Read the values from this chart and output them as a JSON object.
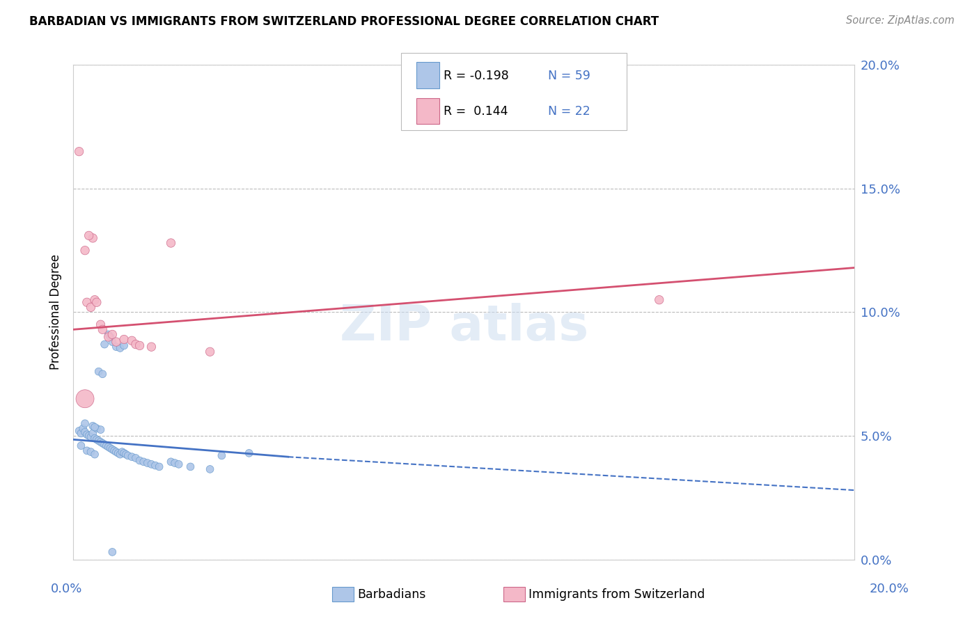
{
  "title": "BARBADIAN VS IMMIGRANTS FROM SWITZERLAND PROFESSIONAL DEGREE CORRELATION CHART",
  "source": "Source: ZipAtlas.com",
  "ylabel": "Professional Degree",
  "right_ytick_vals": [
    0.0,
    5.0,
    10.0,
    15.0,
    20.0
  ],
  "xlim": [
    0.0,
    20.0
  ],
  "ylim": [
    0.0,
    20.0
  ],
  "legend_r_blue": "-0.198",
  "legend_n_blue": "59",
  "legend_r_pink": " 0.144",
  "legend_n_pink": "22",
  "blue_color": "#aec6e8",
  "blue_edge_color": "#6699cc",
  "blue_line_color": "#4472c4",
  "pink_color": "#f4b8c8",
  "pink_edge_color": "#cc6688",
  "pink_line_color": "#d45070",
  "blue_scatter": [
    [
      0.15,
      5.2
    ],
    [
      0.2,
      5.1
    ],
    [
      0.25,
      5.3
    ],
    [
      0.3,
      5.15
    ],
    [
      0.35,
      5.05
    ],
    [
      0.4,
      5.0
    ],
    [
      0.45,
      4.95
    ],
    [
      0.5,
      5.1
    ],
    [
      0.55,
      4.9
    ],
    [
      0.6,
      4.85
    ],
    [
      0.65,
      4.8
    ],
    [
      0.7,
      4.75
    ],
    [
      0.75,
      4.7
    ],
    [
      0.8,
      4.65
    ],
    [
      0.85,
      4.6
    ],
    [
      0.9,
      4.55
    ],
    [
      0.95,
      4.5
    ],
    [
      1.0,
      4.45
    ],
    [
      1.05,
      4.4
    ],
    [
      1.1,
      4.35
    ],
    [
      1.15,
      4.3
    ],
    [
      1.2,
      4.25
    ],
    [
      1.25,
      4.35
    ],
    [
      1.3,
      4.3
    ],
    [
      1.35,
      4.25
    ],
    [
      1.4,
      4.2
    ],
    [
      1.5,
      4.15
    ],
    [
      1.6,
      4.1
    ],
    [
      1.7,
      4.0
    ],
    [
      1.8,
      3.95
    ],
    [
      1.9,
      3.9
    ],
    [
      2.0,
      3.85
    ],
    [
      2.1,
      3.8
    ],
    [
      2.2,
      3.75
    ],
    [
      2.5,
      3.95
    ],
    [
      2.6,
      3.9
    ],
    [
      2.7,
      3.85
    ],
    [
      3.0,
      3.75
    ],
    [
      3.5,
      3.65
    ],
    [
      3.8,
      4.2
    ],
    [
      0.3,
      5.5
    ],
    [
      0.5,
      5.4
    ],
    [
      0.6,
      5.3
    ],
    [
      0.7,
      5.25
    ],
    [
      0.55,
      5.35
    ],
    [
      0.8,
      8.7
    ],
    [
      0.9,
      9.1
    ],
    [
      0.95,
      9.0
    ],
    [
      1.0,
      8.8
    ],
    [
      1.1,
      8.6
    ],
    [
      0.65,
      7.6
    ],
    [
      0.75,
      7.5
    ],
    [
      1.2,
      8.55
    ],
    [
      1.3,
      8.65
    ],
    [
      4.5,
      4.3
    ],
    [
      0.2,
      4.6
    ],
    [
      0.35,
      4.4
    ],
    [
      0.45,
      4.35
    ],
    [
      0.55,
      4.25
    ],
    [
      1.0,
      0.3
    ]
  ],
  "blue_scatter_sizes": [
    60,
    60,
    60,
    60,
    60,
    60,
    60,
    60,
    60,
    60,
    60,
    60,
    60,
    60,
    60,
    60,
    60,
    60,
    60,
    60,
    60,
    60,
    60,
    60,
    60,
    60,
    60,
    60,
    60,
    60,
    60,
    60,
    60,
    60,
    60,
    60,
    60,
    60,
    60,
    60,
    60,
    60,
    60,
    60,
    60,
    60,
    60,
    60,
    60,
    60,
    60,
    60,
    60,
    60,
    60,
    60,
    60,
    60,
    60,
    60
  ],
  "pink_scatter": [
    [
      0.15,
      16.5
    ],
    [
      0.5,
      13.0
    ],
    [
      0.3,
      12.5
    ],
    [
      0.4,
      13.1
    ],
    [
      0.35,
      10.4
    ],
    [
      0.45,
      10.2
    ],
    [
      0.55,
      10.5
    ],
    [
      0.6,
      10.4
    ],
    [
      0.7,
      9.5
    ],
    [
      0.75,
      9.3
    ],
    [
      0.9,
      9.0
    ],
    [
      1.0,
      9.1
    ],
    [
      1.1,
      8.8
    ],
    [
      1.3,
      8.9
    ],
    [
      1.5,
      8.85
    ],
    [
      1.6,
      8.7
    ],
    [
      1.7,
      8.65
    ],
    [
      2.0,
      8.6
    ],
    [
      2.5,
      12.8
    ],
    [
      0.3,
      6.5
    ],
    [
      15.0,
      10.5
    ],
    [
      3.5,
      8.4
    ]
  ],
  "pink_scatter_sizes": [
    80,
    80,
    80,
    80,
    80,
    80,
    80,
    80,
    80,
    80,
    80,
    80,
    80,
    80,
    80,
    80,
    80,
    80,
    80,
    350,
    80,
    80
  ],
  "blue_trendline_solid": [
    [
      0.0,
      4.85
    ],
    [
      5.5,
      4.15
    ]
  ],
  "blue_trendline_dashed": [
    [
      5.5,
      4.15
    ],
    [
      20.0,
      2.8
    ]
  ],
  "pink_trendline": [
    [
      0.0,
      9.3
    ],
    [
      20.0,
      11.8
    ]
  ]
}
